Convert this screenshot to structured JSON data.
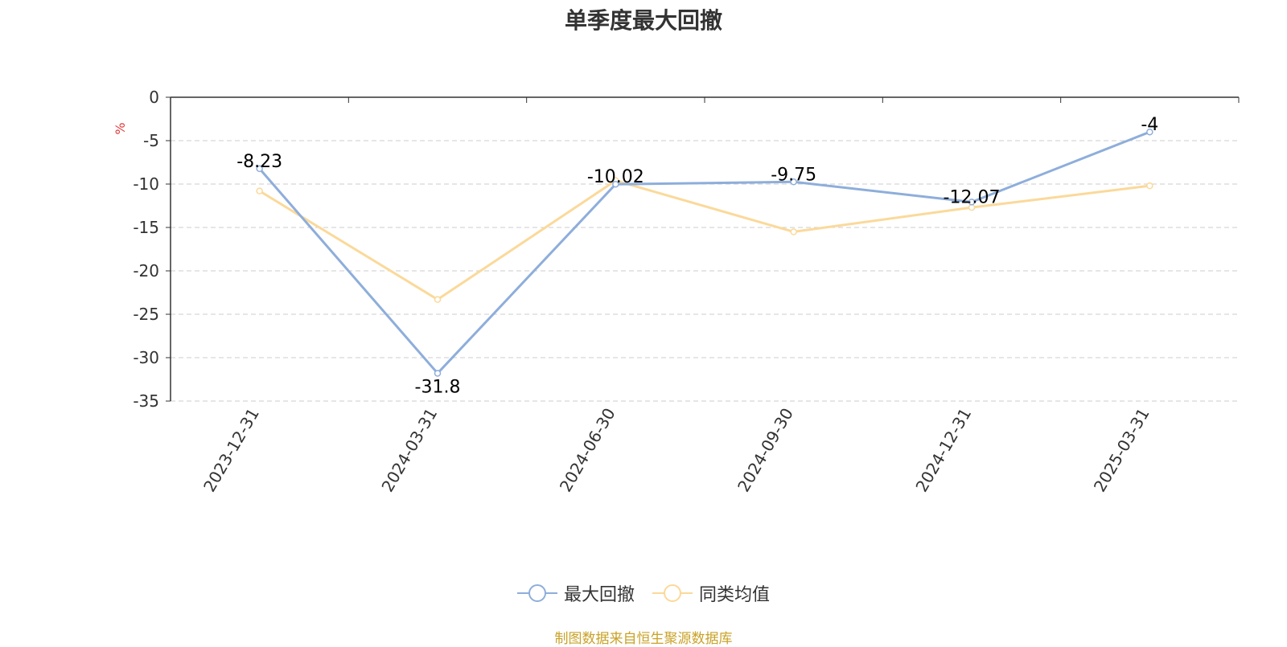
{
  "chart_data": {
    "type": "line",
    "title": "单季度最大回撤",
    "ylabel": "%",
    "categories": [
      "2023-12-31",
      "2024-03-31",
      "2024-06-30",
      "2024-09-30",
      "2024-12-31",
      "2025-03-31"
    ],
    "ylim": [
      -35,
      0
    ],
    "yticks": [
      0,
      -5,
      -10,
      -15,
      -20,
      -25,
      -30,
      -35
    ],
    "grid": true,
    "legend_position": "bottom",
    "series": [
      {
        "name": "最大回撤",
        "color": "#8eaedb",
        "values": [
          -8.23,
          -31.8,
          -10.02,
          -9.75,
          -12.07,
          -4
        ],
        "labels": [
          "-8.23",
          "-31.8",
          "-10.02",
          "-9.75",
          "-12.07",
          "-4"
        ]
      },
      {
        "name": "同类均值",
        "color": "#fbd99a",
        "values": [
          -10.8,
          -23.3,
          -9.6,
          -15.5,
          -12.7,
          -10.2
        ]
      }
    ]
  },
  "source": "制图数据来自恒生聚源数据库",
  "colors": {
    "ylabel": "#e03b3b",
    "source": "#c9a227",
    "grid": "#cccccc",
    "axis": "#333333"
  }
}
